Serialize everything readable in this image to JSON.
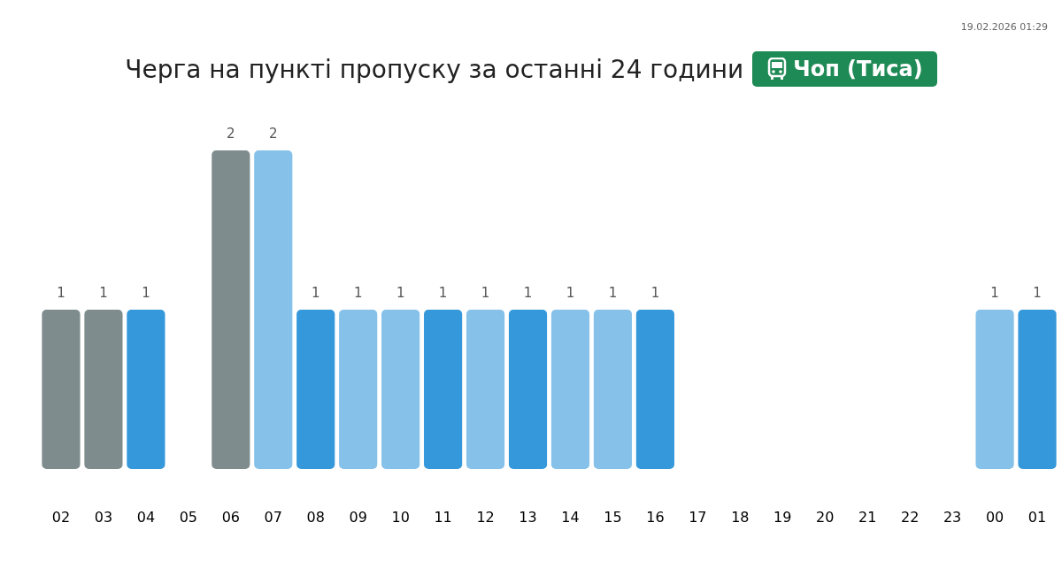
{
  "chart_data": {
    "type": "bar",
    "title": "Черга на пункті пропуску за останні 24 години",
    "subtitle": "Чоп (Тиса)",
    "annotations": [
      "19.02.2026 01:29"
    ],
    "categories": [
      "02",
      "03",
      "04",
      "05",
      "06",
      "07",
      "08",
      "09",
      "10",
      "11",
      "12",
      "13",
      "14",
      "15",
      "16",
      "17",
      "18",
      "19",
      "20",
      "21",
      "22",
      "23",
      "00",
      "01"
    ],
    "values": [
      1,
      1,
      1,
      null,
      2,
      2,
      1,
      1,
      1,
      1,
      1,
      1,
      1,
      1,
      1,
      null,
      null,
      null,
      null,
      null,
      null,
      null,
      1,
      1
    ],
    "colors": [
      "#7f8c8d",
      "#7f8c8d",
      "#3498db",
      "#3498db",
      "#7f8c8d",
      "#85c1e9",
      "#3498db",
      "#85c1e9",
      "#85c1e9",
      "#3498db",
      "#85c1e9",
      "#3498db",
      "#85c1e9",
      "#85c1e9",
      "#3498db",
      "#3498db",
      "#3498db",
      "#3498db",
      "#3498db",
      "#3498db",
      "#3498db",
      "#3498db",
      "#85c1e9",
      "#3498db"
    ],
    "data_labels": true
  }
}
